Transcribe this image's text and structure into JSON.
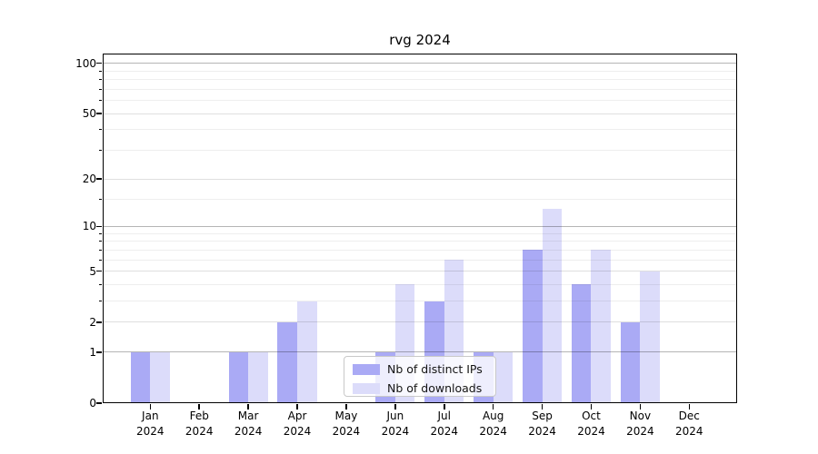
{
  "chart_data": {
    "type": "bar",
    "title": "rvg 2024",
    "categories": [
      "Jan 2024",
      "Feb 2024",
      "Mar 2024",
      "Apr 2024",
      "May 2024",
      "Jun 2024",
      "Jul 2024",
      "Aug 2024",
      "Sep 2024",
      "Oct 2024",
      "Nov 2024",
      "Dec 2024"
    ],
    "months": [
      "Jan",
      "Feb",
      "Mar",
      "Apr",
      "May",
      "Jun",
      "Jul",
      "Aug",
      "Sep",
      "Oct",
      "Nov",
      "Dec"
    ],
    "year": "2024",
    "series": [
      {
        "name": "Nb of distinct IPs",
        "color": "#aaaaf5",
        "values": [
          1,
          0,
          1,
          2,
          0,
          1,
          3,
          1,
          7,
          4,
          2,
          0
        ]
      },
      {
        "name": "Nb of downloads",
        "color": "#dcdcfa",
        "values": [
          1,
          0,
          1,
          3,
          0,
          4,
          6,
          1,
          13,
          7,
          5,
          0
        ]
      }
    ],
    "xlabel": "",
    "ylabel": "",
    "y_scale": "log10(1+x)",
    "y_ticks": [
      0,
      1,
      2,
      5,
      10,
      20,
      50,
      100
    ],
    "y_tick_labels": [
      "0",
      "1",
      "2",
      "5",
      "10",
      "20",
      "50",
      "100"
    ],
    "y_minor_gridlines": [
      3,
      4,
      6,
      7,
      8,
      9,
      15,
      30,
      40,
      60,
      70,
      80,
      90
    ],
    "y_decade_gridlines": [
      1,
      10,
      100
    ],
    "ylim": [
      0,
      115
    ],
    "grid": true,
    "legend_position": "lower center"
  }
}
